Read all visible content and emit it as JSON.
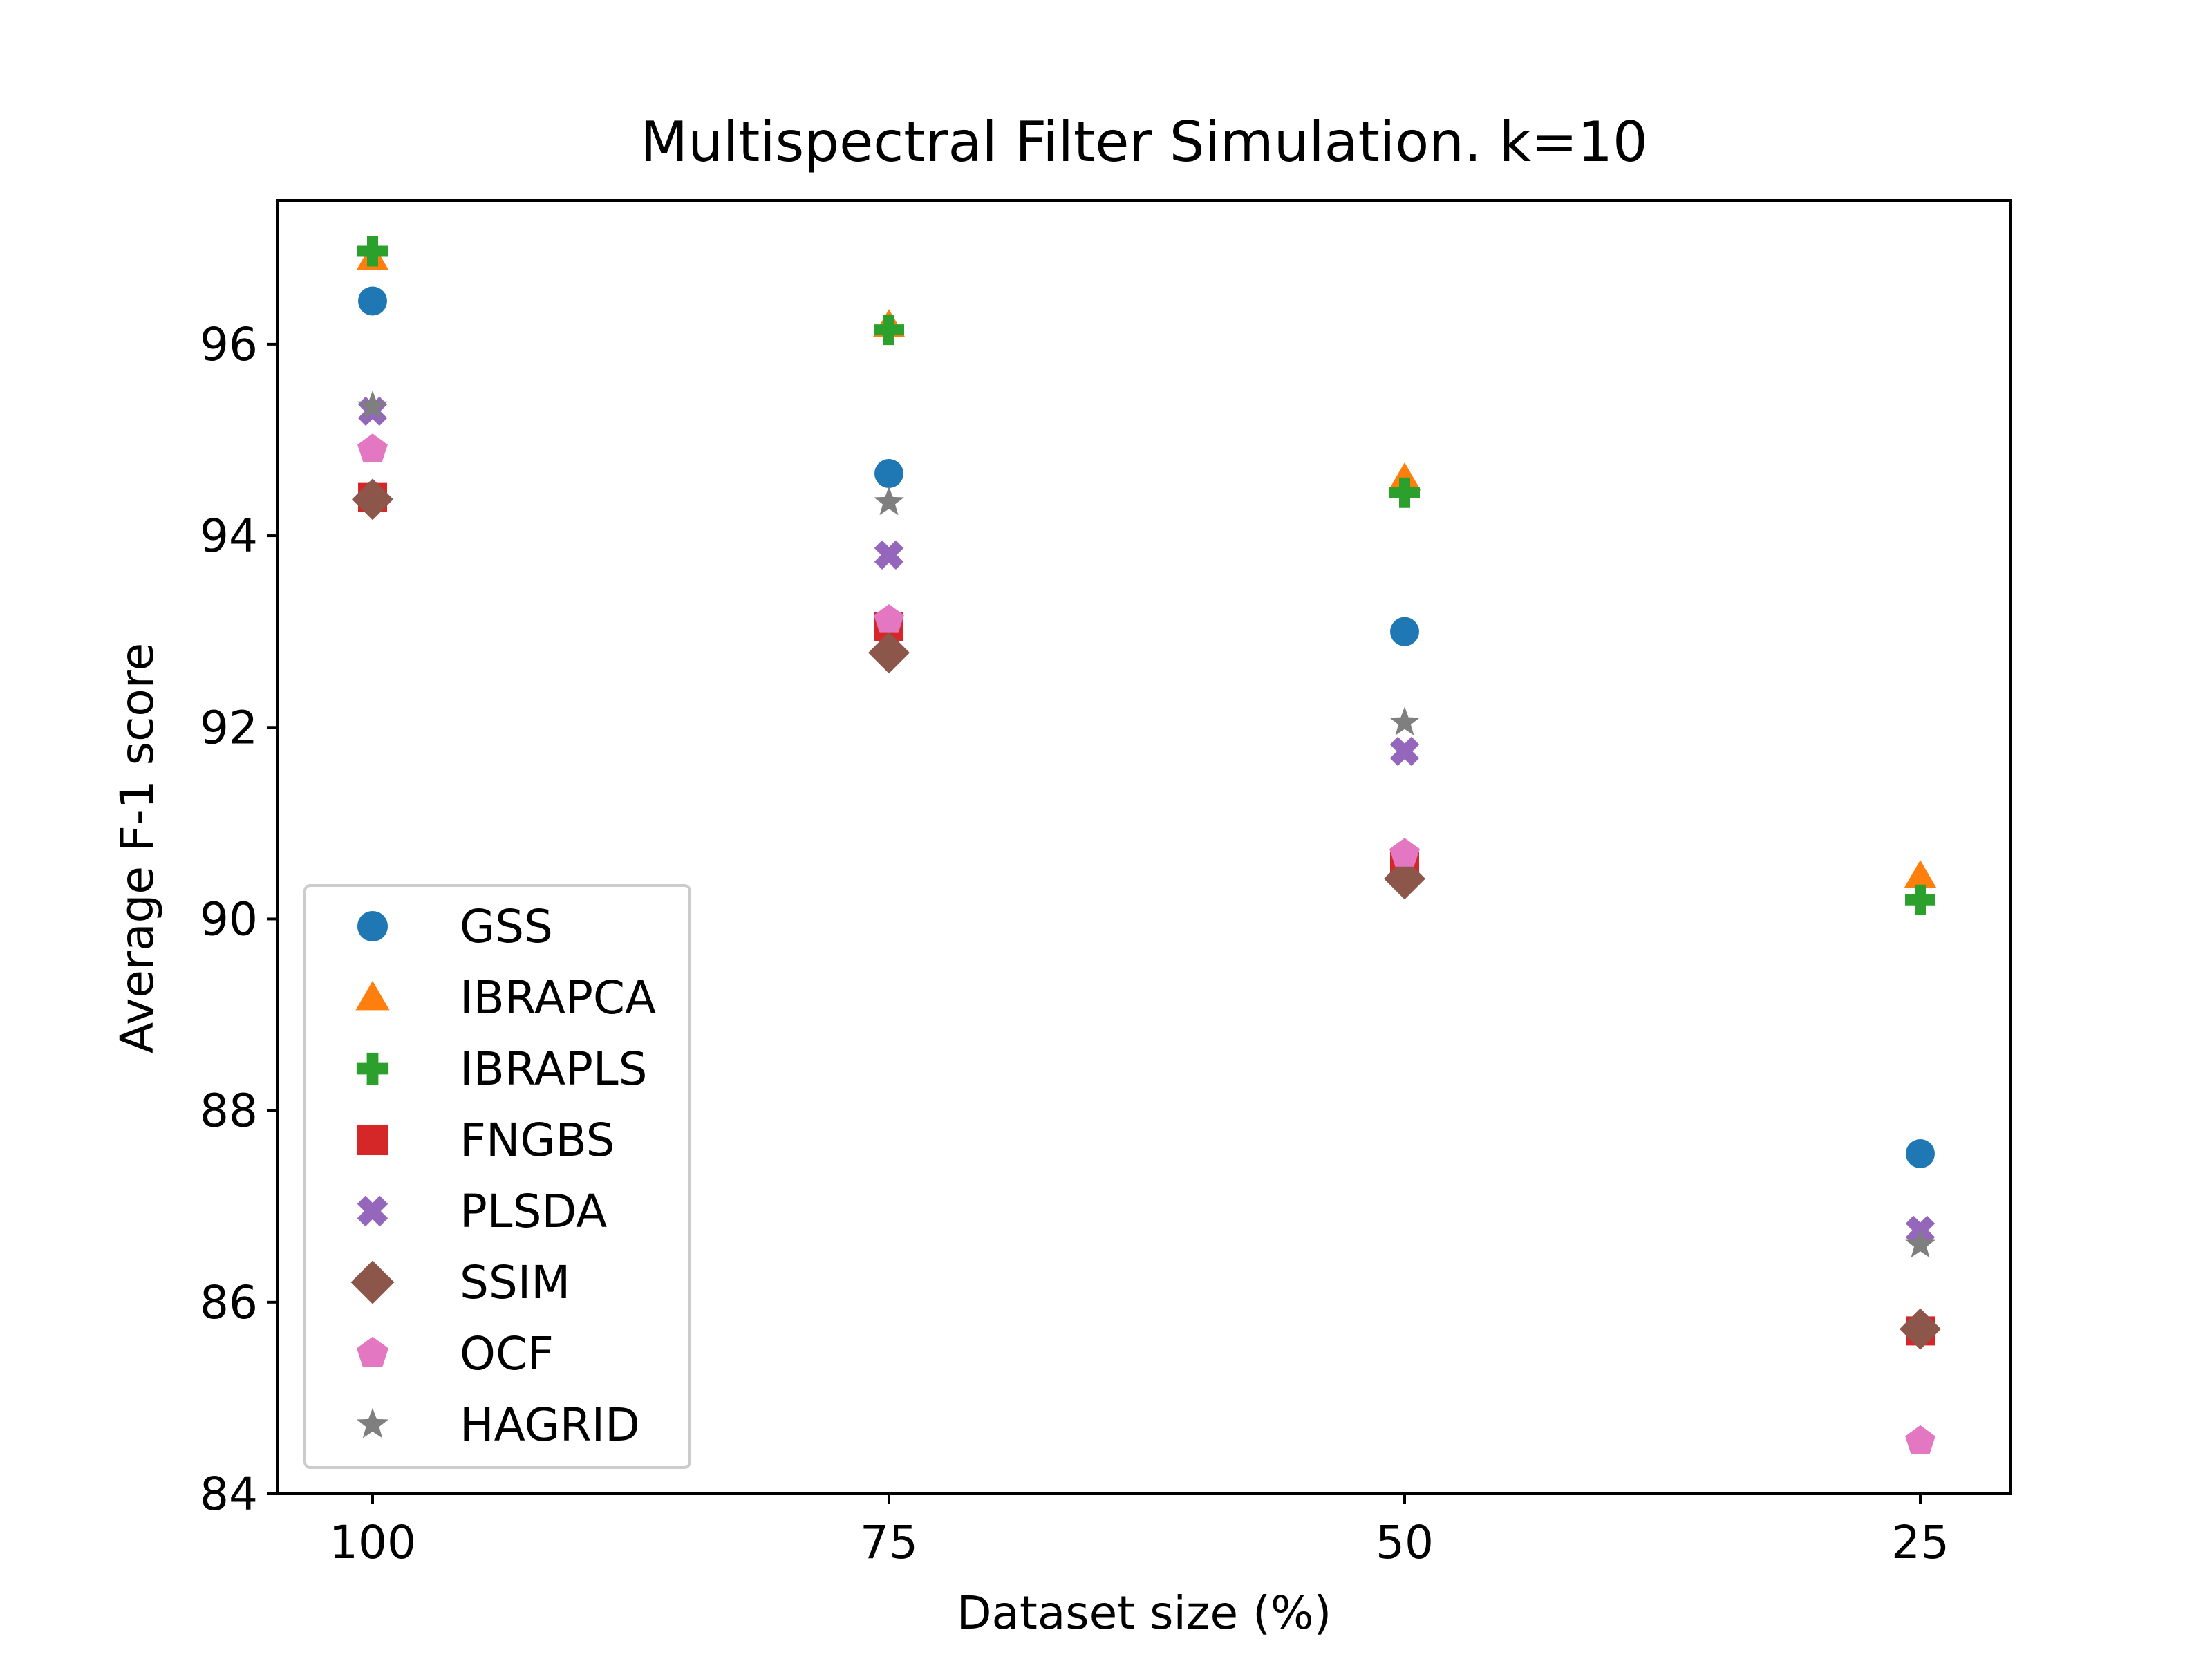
{
  "chart_data": {
    "type": "scatter",
    "title": "Multispectral Filter Simulation. k=10",
    "xlabel": "Dataset size (%)",
    "ylabel": "Average F-1 score",
    "categories": [
      "100",
      "75",
      "50",
      "25"
    ],
    "ylim": [
      84,
      97.5
    ],
    "yticks": [
      "84",
      "86",
      "88",
      "90",
      "92",
      "94",
      "96"
    ],
    "grid": false,
    "legend_position": "lower-left",
    "series": [
      {
        "name": "GSS",
        "marker": "circle",
        "color": "#1f77b4",
        "values": [
          96.45,
          94.65,
          93.0,
          87.55
        ]
      },
      {
        "name": "IBRAPCA",
        "marker": "triangle",
        "color": "#ff7f0e",
        "values": [
          96.9,
          96.2,
          94.6,
          90.45
        ]
      },
      {
        "name": "IBRAPLS",
        "marker": "plus",
        "color": "#2ca02c",
        "values": [
          96.97,
          96.15,
          94.45,
          90.2
        ]
      },
      {
        "name": "FNGBS",
        "marker": "square",
        "color": "#d62728",
        "values": [
          94.4,
          93.05,
          90.55,
          85.7
        ]
      },
      {
        "name": "PLSDA",
        "marker": "x",
        "color": "#9467bd",
        "values": [
          95.3,
          93.8,
          91.75,
          86.75
        ]
      },
      {
        "name": "SSIM",
        "marker": "diamond",
        "color": "#8c564b",
        "values": [
          94.38,
          92.78,
          90.42,
          85.72
        ]
      },
      {
        "name": "OCF",
        "marker": "pentagon",
        "color": "#e377c2",
        "values": [
          94.9,
          93.12,
          90.68,
          84.55
        ]
      },
      {
        "name": "HAGRID",
        "marker": "star",
        "color": "#7f7f7f",
        "values": [
          95.35,
          94.35,
          92.05,
          86.6
        ]
      }
    ]
  }
}
